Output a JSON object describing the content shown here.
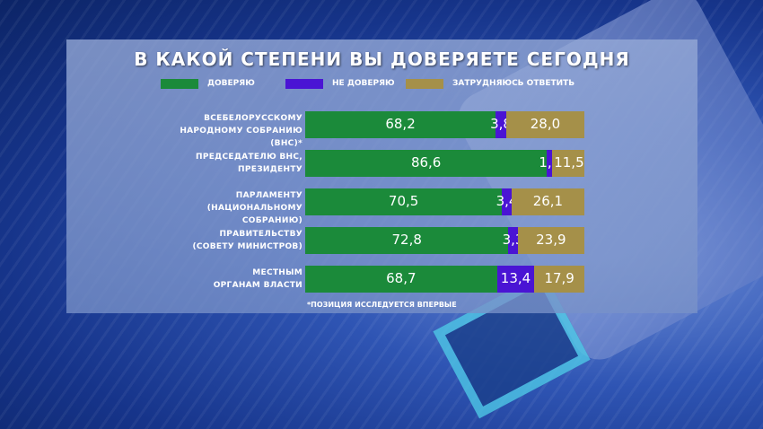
{
  "title": "В КАКОЙ СТЕПЕНИ ВЫ ДОВЕРЯЕТЕ СЕГОДНЯ",
  "legend": [
    {
      "label": "ДОВЕРЯЮ",
      "color": "#1b8a3a"
    },
    {
      "label": "НЕ ДОВЕРЯЮ",
      "color": "#4a14d4"
    },
    {
      "label": "ЗАТРУДНЯЮСЬ ОТВЕТИТЬ",
      "color": "#a59049"
    }
  ],
  "footnote": "*ПОЗИЦИЯ ИССЛЕДУЕТСЯ ВПЕРВЫЕ",
  "chart_data": {
    "type": "bar",
    "orientation": "horizontal",
    "stacked": true,
    "title": "В КАКОЙ СТЕПЕНИ ВЫ ДОВЕРЯЕТЕ СЕГОДНЯ",
    "categories": [
      [
        "ВСЕБЕЛОРУССКОМУ",
        "НАРОДНОМУ СОБРАНИЮ (ВНС)*"
      ],
      [
        "ПРЕДСЕДАТЕЛЮ ВНС,",
        "ПРЕЗИДЕНТУ"
      ],
      [
        "ПАРЛАМЕНТУ",
        "(НАЦИОНАЛЬНОМУ СОБРАНИЮ)"
      ],
      [
        "ПРАВИТЕЛЬСТВУ",
        "(СОВЕТУ МИНИСТРОВ)"
      ],
      [
        "МЕСТНЫМ",
        "ОРГАНАМ ВЛАСТИ"
      ]
    ],
    "series": [
      {
        "name": "ДОВЕРЯЮ",
        "color": "#1b8a3a",
        "values": [
          68.2,
          86.6,
          70.5,
          72.8,
          68.7
        ],
        "labels": [
          "68,2",
          "86,6",
          "70,5",
          "72,8",
          "68,7"
        ]
      },
      {
        "name": "НЕ ДОВЕРЯЮ",
        "color": "#4a14d4",
        "values": [
          3.8,
          1.9,
          3.4,
          3.3,
          13.4
        ],
        "labels": [
          "3,8",
          "1,9",
          "3,4",
          "3,3",
          "13,4"
        ]
      },
      {
        "name": "ЗАТРУДНЯЮСЬ ОТВЕТИТЬ",
        "color": "#a59049",
        "values": [
          28.0,
          11.5,
          26.1,
          23.9,
          17.9
        ],
        "labels": [
          "28,0",
          "11,5",
          "26,1",
          "23,9",
          "17,9"
        ]
      }
    ],
    "xlim": [
      0,
      100
    ],
    "legend_position": "top"
  }
}
